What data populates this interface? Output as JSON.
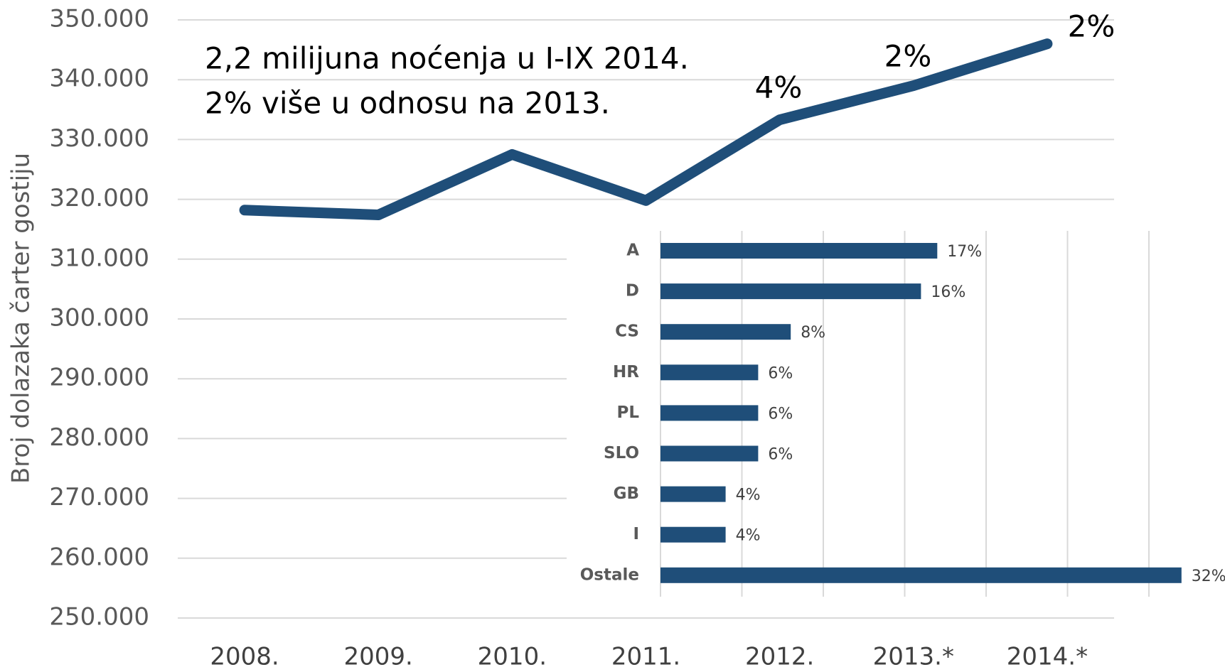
{
  "chart_data": [
    {
      "type": "line",
      "y_label": "Broj dolazaka čarter gostiju",
      "text_box": [
        "2,2 milijuna noćenja u I-IX 2014.",
        "2% više u odnosu na 2013."
      ],
      "categories": [
        "2008.",
        "2009.",
        "2010.",
        "2011.",
        "2012.",
        "2013.*",
        "2014.*"
      ],
      "values": [
        318200,
        317400,
        327500,
        319800,
        333300,
        339000,
        346000
      ],
      "color": "#1f4e79",
      "annotations": [
        "4%",
        "2%",
        "2%"
      ],
      "ylim": [
        250000,
        350000
      ],
      "yticks": [
        {
          "value": 250000,
          "label": "250.000"
        },
        {
          "value": 260000,
          "label": "260.000"
        },
        {
          "value": 270000,
          "label": "270.000"
        },
        {
          "value": 280000,
          "label": "280.000"
        },
        {
          "value": 290000,
          "label": "290.000"
        },
        {
          "value": 300000,
          "label": "300.000"
        },
        {
          "value": 310000,
          "label": "310.000"
        },
        {
          "value": 320000,
          "label": "320.000"
        },
        {
          "value": 330000,
          "label": "330.000"
        },
        {
          "value": 340000,
          "label": "340.000"
        },
        {
          "value": 350000,
          "label": "350.000"
        }
      ],
      "grid": true
    },
    {
      "type": "hbar",
      "categories": [
        "A",
        "D",
        "CS",
        "HR",
        "PL",
        "SLO",
        "GB",
        "I",
        "Ostale"
      ],
      "values": [
        17,
        16,
        8,
        6,
        6,
        6,
        4,
        4,
        32
      ],
      "value_labels": [
        "17%",
        "16%",
        "8%",
        "6%",
        "6%",
        "6%",
        "4%",
        "4%",
        "32%"
      ],
      "color": "#1f4e79",
      "xlim": [
        0,
        35
      ],
      "xticks": [
        0,
        5,
        10,
        15,
        20,
        25,
        30
      ],
      "grid": true
    }
  ]
}
